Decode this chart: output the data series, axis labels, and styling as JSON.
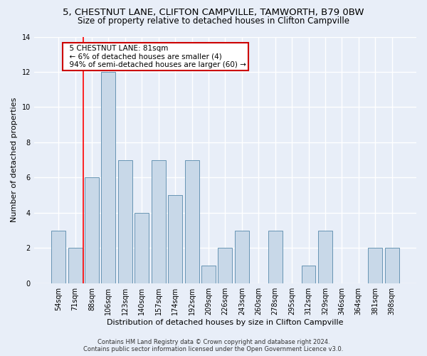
{
  "title1": "5, CHESTNUT LANE, CLIFTON CAMPVILLE, TAMWORTH, B79 0BW",
  "title2": "Size of property relative to detached houses in Clifton Campville",
  "xlabel": "Distribution of detached houses by size in Clifton Campville",
  "ylabel": "Number of detached properties",
  "footer1": "Contains HM Land Registry data © Crown copyright and database right 2024.",
  "footer2": "Contains public sector information licensed under the Open Government Licence v3.0.",
  "bin_labels": [
    "54sqm",
    "71sqm",
    "88sqm",
    "106sqm",
    "123sqm",
    "140sqm",
    "157sqm",
    "174sqm",
    "192sqm",
    "209sqm",
    "226sqm",
    "243sqm",
    "260sqm",
    "278sqm",
    "295sqm",
    "312sqm",
    "329sqm",
    "346sqm",
    "364sqm",
    "381sqm",
    "398sqm"
  ],
  "values": [
    3,
    2,
    6,
    12,
    7,
    4,
    7,
    5,
    7,
    1,
    2,
    3,
    0,
    3,
    0,
    1,
    3,
    0,
    0,
    2,
    2
  ],
  "bar_color": "#c8d8e8",
  "bar_edge_color": "#5588aa",
  "red_line_x": 1.5,
  "annotation_text": "  5 CHESTNUT LANE: 81sqm\n  ← 6% of detached houses are smaller (4)\n  94% of semi-detached houses are larger (60) →",
  "annotation_box_color": "#ffffff",
  "annotation_box_edge": "#cc0000",
  "ylim": [
    0,
    14
  ],
  "yticks": [
    0,
    2,
    4,
    6,
    8,
    10,
    12,
    14
  ],
  "bg_color": "#e8eef8",
  "plot_bg_color": "#e8eef8",
  "grid_color": "#ffffff",
  "title1_fontsize": 9.5,
  "title2_fontsize": 8.5,
  "xlabel_fontsize": 8,
  "ylabel_fontsize": 8,
  "tick_fontsize": 7,
  "footer_fontsize": 6,
  "annotation_fontsize": 7.5
}
